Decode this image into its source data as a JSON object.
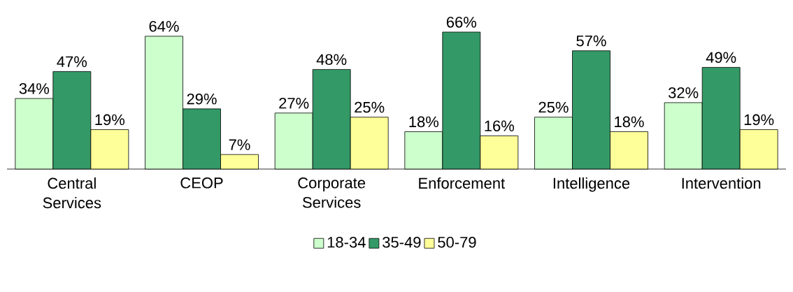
{
  "chart_data": {
    "type": "bar",
    "categories": [
      "Central Services",
      "CEOP",
      "Corporate Services",
      "Enforcement",
      "Intelligence",
      "Intervention"
    ],
    "series": [
      {
        "name": "18-34",
        "color": "#ccffcc",
        "values": [
          34,
          64,
          27,
          18,
          25,
          32
        ],
        "value_labels": [
          "34%",
          "64%",
          "27%",
          "18%",
          "25%",
          "32%"
        ]
      },
      {
        "name": "35-49",
        "color": "#339966",
        "values": [
          47,
          29,
          48,
          66,
          57,
          49
        ],
        "value_labels": [
          "47%",
          "29%",
          "48%",
          "66%",
          "57%",
          "49%"
        ]
      },
      {
        "name": "50-79",
        "color": "#ffff99",
        "values": [
          19,
          7,
          25,
          16,
          18,
          19
        ],
        "value_labels": [
          "19%",
          "7%",
          "25%",
          "16%",
          "18%",
          "19%"
        ]
      }
    ],
    "tick_labels": "x",
    "legend": "bottom"
  }
}
